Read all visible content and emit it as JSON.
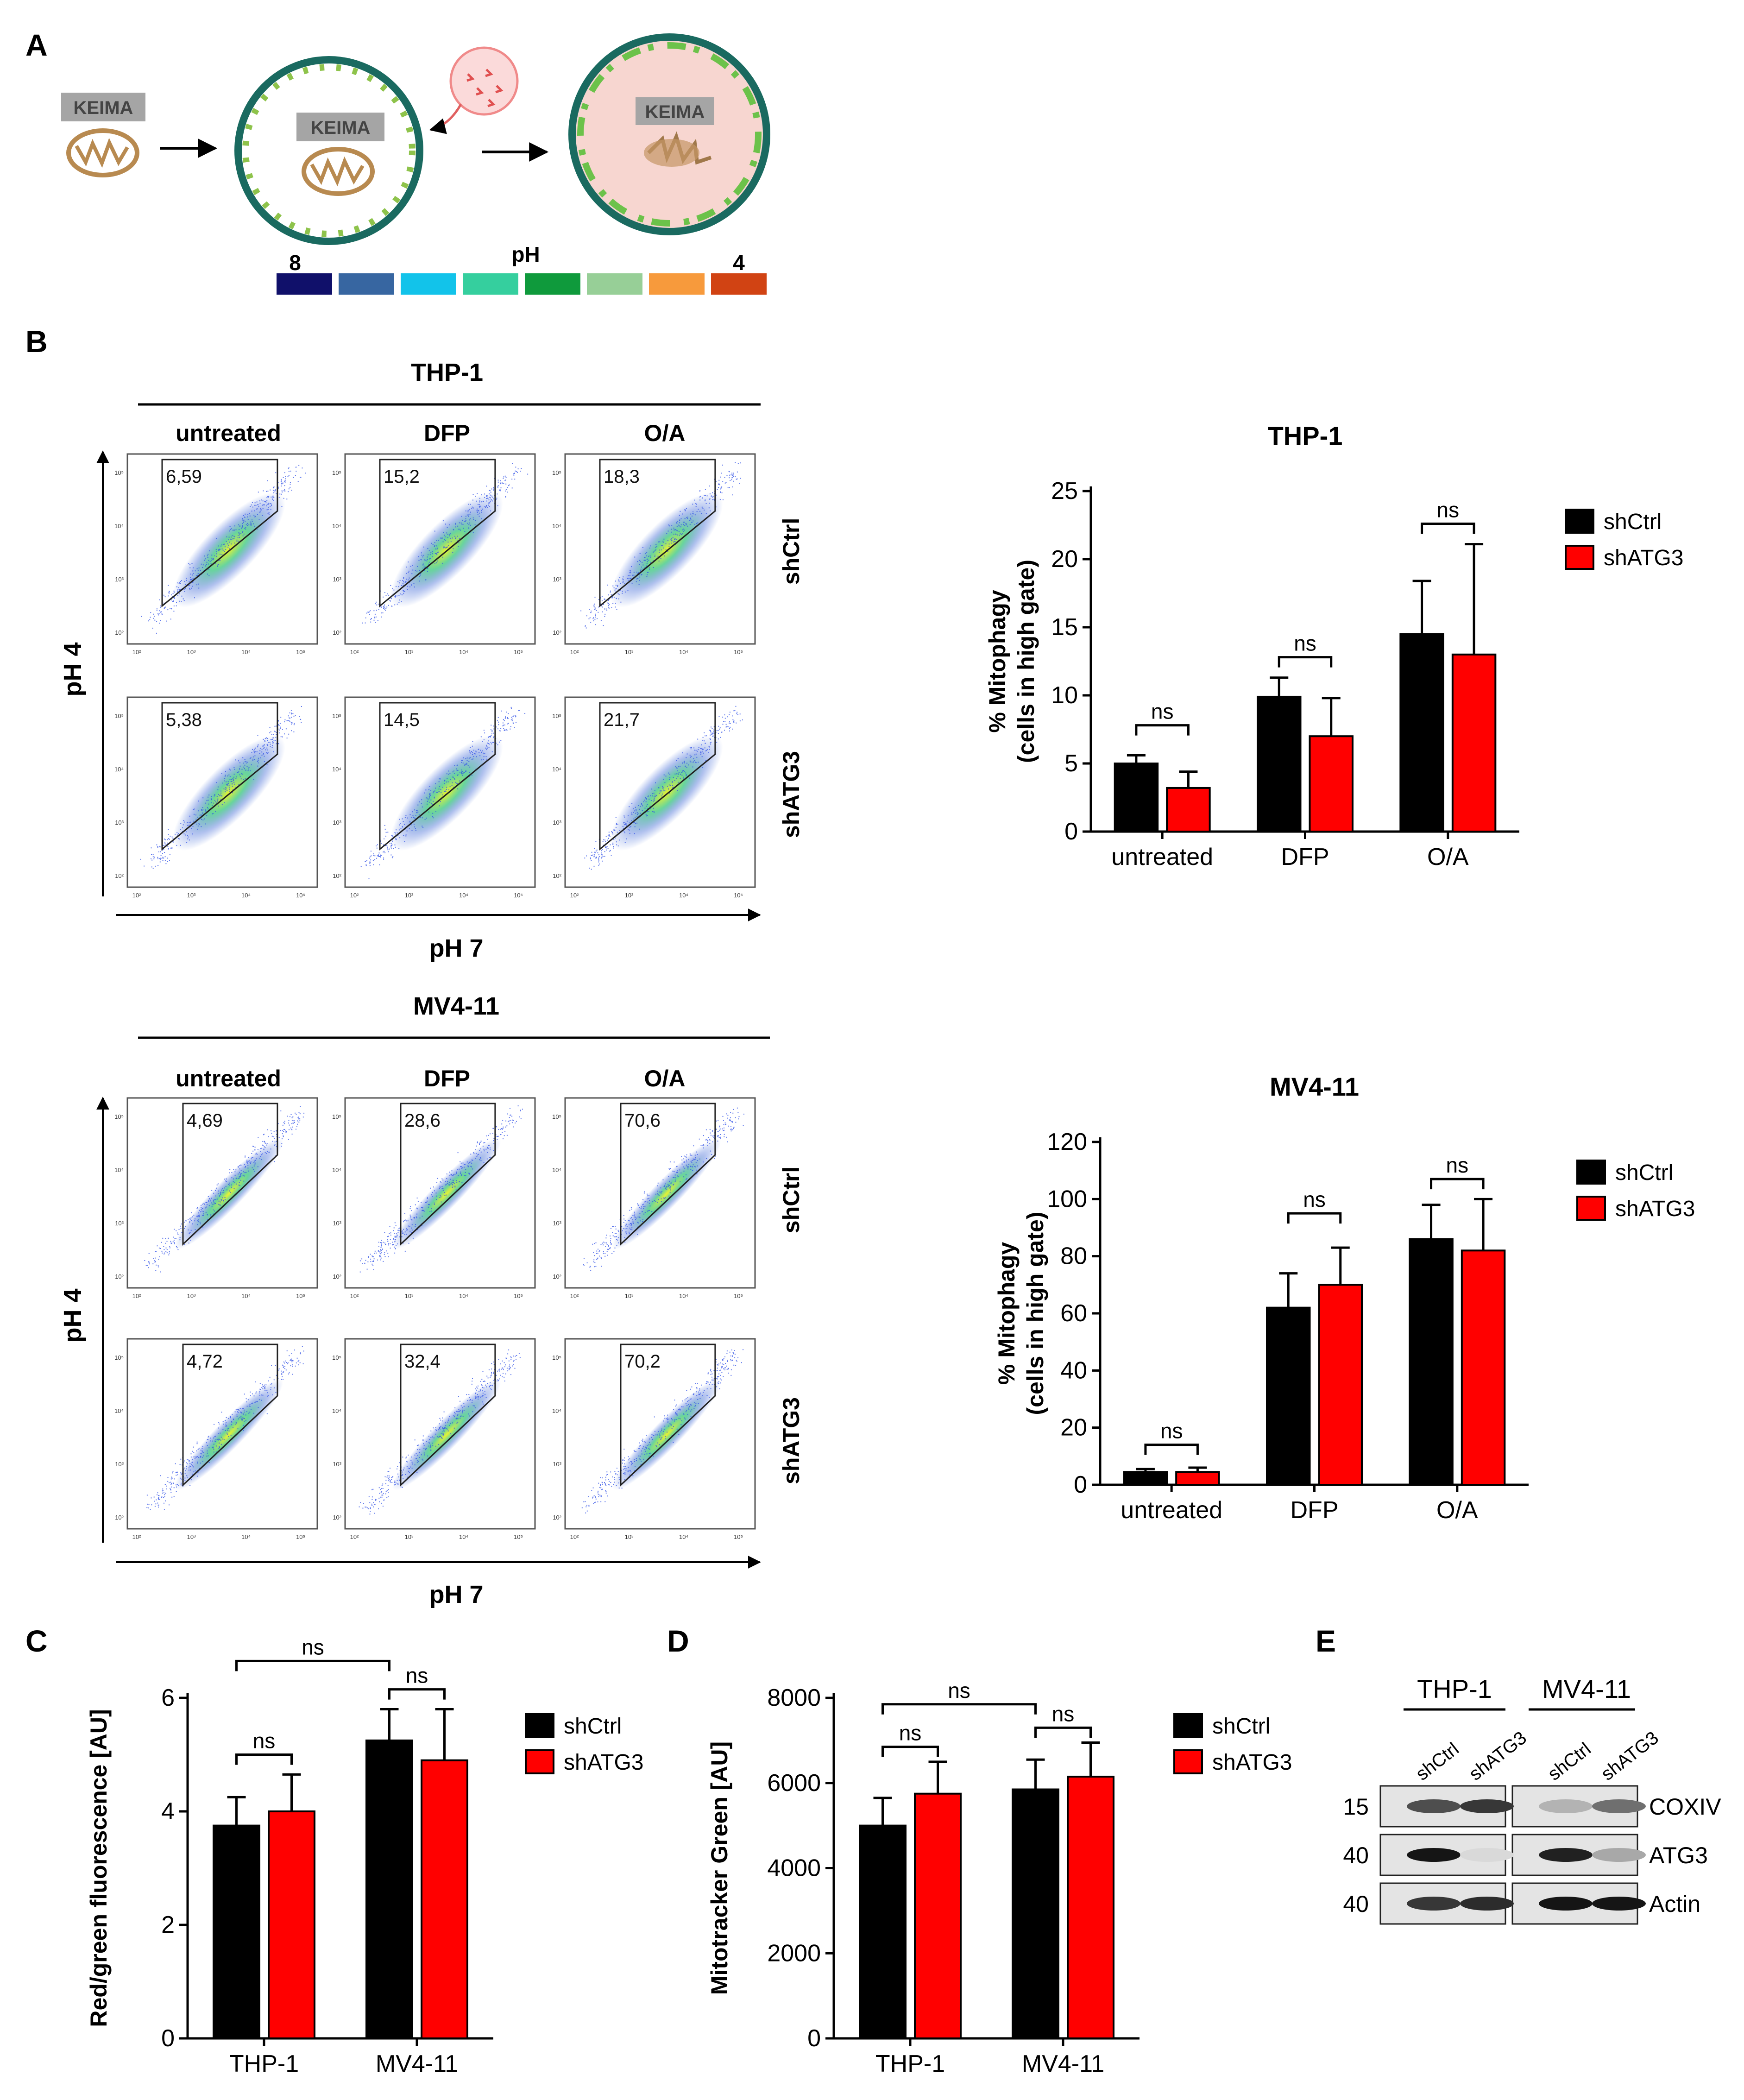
{
  "panel_letters": [
    "A",
    "B",
    "C",
    "D",
    "E"
  ],
  "panelA": {
    "keima": "KEIMA",
    "ph_label": "pH",
    "ph_high": "8",
    "ph_low": "4",
    "ph_colors": [
      "#10106a",
      "#3766a1",
      "#12c3ea",
      "#35cf9e",
      "#0f9a3c",
      "#97cf97",
      "#f79a3c",
      "#d14313"
    ]
  },
  "flow": [
    {
      "cell_line": "THP-1",
      "treatments": [
        "untreated",
        "DFP",
        "O/A"
      ],
      "rows": [
        "shCtrl",
        "shATG3"
      ],
      "gate_values": [
        [
          "6,59",
          "15,2",
          "18,3"
        ],
        [
          "5,38",
          "14,5",
          "21,7"
        ]
      ],
      "y_axis": "pH 4",
      "x_axis": "pH 7",
      "tick_labels": [
        "10²",
        "10³",
        "10⁴",
        "10⁵"
      ]
    },
    {
      "cell_line": "MV4-11",
      "treatments": [
        "untreated",
        "DFP",
        "O/A"
      ],
      "rows": [
        "shCtrl",
        "shATG3"
      ],
      "gate_values": [
        [
          "4,69",
          "28,6",
          "70,6"
        ],
        [
          "4,72",
          "32,4",
          "70,2"
        ]
      ],
      "y_axis": "pH 4",
      "x_axis": "pH 7",
      "tick_labels": [
        "10²",
        "10³",
        "10⁴",
        "10⁵"
      ]
    }
  ],
  "chart_data": [
    {
      "id": "B_THP1",
      "type": "bar",
      "title": "THP-1",
      "ylabel": "% Mitophagy\n(cells in high gate)",
      "categories": [
        "untreated",
        "DFP",
        "O/A"
      ],
      "series": [
        {
          "name": "shCtrl",
          "color": "#000000",
          "values": [
            5.0,
            9.9,
            14.5
          ],
          "errors": [
            0.6,
            1.4,
            3.9
          ]
        },
        {
          "name": "shATG3",
          "color": "#ff0000",
          "values": [
            3.2,
            7.0,
            13.0
          ],
          "errors": [
            1.2,
            2.8,
            8.1
          ]
        }
      ],
      "ylim": [
        0,
        25
      ],
      "yticks": [
        0,
        5,
        10,
        15,
        20,
        25
      ],
      "annotations": [
        {
          "label": "ns",
          "from": [
            0,
            0
          ],
          "to": [
            0,
            1
          ],
          "level": 7.8
        },
        {
          "label": "ns",
          "from": [
            1,
            0
          ],
          "to": [
            1,
            1
          ],
          "level": 12.8
        },
        {
          "label": "ns",
          "from": [
            2,
            0
          ],
          "to": [
            2,
            1
          ],
          "level": 22.6
        }
      ]
    },
    {
      "id": "B_MV411",
      "type": "bar",
      "title": "MV4-11",
      "ylabel": "% Mitophagy\n(cells in high gate)",
      "categories": [
        "untreated",
        "DFP",
        "O/A"
      ],
      "series": [
        {
          "name": "shCtrl",
          "color": "#000000",
          "values": [
            4.5,
            62,
            86
          ],
          "errors": [
            1.0,
            12,
            12
          ]
        },
        {
          "name": "shATG3",
          "color": "#ff0000",
          "values": [
            4.5,
            70,
            82
          ],
          "errors": [
            1.5,
            13,
            18
          ]
        }
      ],
      "ylim": [
        0,
        120
      ],
      "yticks": [
        0,
        20,
        40,
        60,
        80,
        100,
        120
      ],
      "annotations": [
        {
          "label": "ns",
          "from": [
            0,
            0
          ],
          "to": [
            0,
            1
          ],
          "level": 14
        },
        {
          "label": "ns",
          "from": [
            1,
            0
          ],
          "to": [
            1,
            1
          ],
          "level": 95
        },
        {
          "label": "ns",
          "from": [
            2,
            0
          ],
          "to": [
            2,
            1
          ],
          "level": 107
        }
      ]
    },
    {
      "id": "C",
      "type": "bar",
      "title": "",
      "ylabel": "Red/green fluorescence [AU]",
      "categories": [
        "THP-1",
        "MV4-11"
      ],
      "series": [
        {
          "name": "shCtrl",
          "color": "#000000",
          "values": [
            3.75,
            5.25
          ],
          "errors": [
            0.5,
            0.55
          ]
        },
        {
          "name": "shATG3",
          "color": "#ff0000",
          "values": [
            4.0,
            4.9
          ],
          "errors": [
            0.65,
            0.9
          ]
        }
      ],
      "ylim": [
        0,
        6
      ],
      "yticks": [
        0,
        2,
        4,
        6
      ],
      "annotations": [
        {
          "label": "ns",
          "from": [
            0,
            0
          ],
          "to": [
            0,
            1
          ],
          "level": 5.0
        },
        {
          "label": "ns",
          "from": [
            1,
            0
          ],
          "to": [
            1,
            1
          ],
          "level": 6.15
        },
        {
          "label": "ns",
          "from": [
            0,
            0
          ],
          "to": [
            1,
            0
          ],
          "level": 6.65
        }
      ]
    },
    {
      "id": "D",
      "type": "bar",
      "title": "",
      "ylabel": "Mitotracker Green [AU]",
      "categories": [
        "THP-1",
        "MV4-11"
      ],
      "series": [
        {
          "name": "shCtrl",
          "color": "#000000",
          "values": [
            5000,
            5850
          ],
          "errors": [
            650,
            700
          ]
        },
        {
          "name": "shATG3",
          "color": "#ff0000",
          "values": [
            5750,
            6150
          ],
          "errors": [
            750,
            800
          ]
        }
      ],
      "ylim": [
        0,
        8000
      ],
      "yticks": [
        0,
        2000,
        4000,
        6000,
        8000
      ],
      "annotations": [
        {
          "label": "ns",
          "from": [
            0,
            0
          ],
          "to": [
            0,
            1
          ],
          "level": 6850
        },
        {
          "label": "ns",
          "from": [
            1,
            0
          ],
          "to": [
            1,
            1
          ],
          "level": 7300
        },
        {
          "label": "ns",
          "from": [
            0,
            0
          ],
          "to": [
            1,
            0
          ],
          "level": 7850
        }
      ]
    }
  ],
  "legend": {
    "items": [
      "shCtrl",
      "shATG3"
    ]
  },
  "panelE": {
    "groups": [
      "THP-1",
      "MV4-11"
    ],
    "lanes": [
      "shCtrl",
      "shATG3",
      "shCtrl",
      "shATG3"
    ],
    "markers": [
      "15",
      "40",
      "40"
    ],
    "proteins": [
      "COXIV",
      "ATG3",
      "Actin"
    ],
    "band_intensity": [
      [
        0.7,
        0.8,
        0.25,
        0.55
      ],
      [
        0.95,
        0.08,
        0.9,
        0.3
      ],
      [
        0.8,
        0.85,
        0.95,
        0.95
      ]
    ]
  }
}
